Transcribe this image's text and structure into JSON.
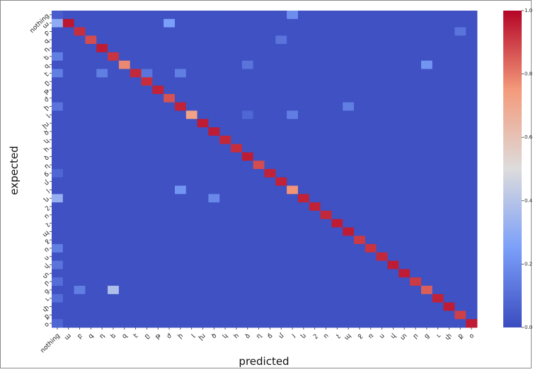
{
  "chart_data": {
    "type": "heatmap",
    "title": "",
    "xlabel": "predicted",
    "ylabel": "expected",
    "labels": [
      "nothing",
      "ա",
      "բ",
      "գ",
      "դ",
      "ե",
      "զ",
      "է",
      "ը",
      "թ",
      "ժ",
      "ի",
      "լ",
      "խ",
      "ծ",
      "կ",
      "հ",
      "ձ",
      "ղ",
      "ճ",
      "մ",
      "յ",
      "ն",
      "շ",
      "ո",
      "չ",
      "պ",
      "ջ",
      "ռ",
      "ս",
      "վ",
      "տ",
      "ր",
      "ց",
      "ւ",
      "փ",
      "ք",
      "օ"
    ],
    "colorbar": {
      "min": 0.0,
      "max": 1.0,
      "ticks": [
        "0.0",
        "0.2",
        "0.4",
        "0.6",
        "0.8",
        "1.0"
      ]
    },
    "diagonal": [
      0.05,
      0.97,
      0.93,
      0.88,
      0.96,
      0.92,
      0.78,
      0.94,
      0.93,
      0.95,
      0.87,
      0.95,
      0.72,
      0.96,
      0.96,
      0.94,
      0.93,
      0.96,
      0.88,
      0.95,
      0.95,
      0.76,
      0.95,
      0.95,
      0.94,
      0.96,
      0.96,
      0.91,
      0.92,
      0.94,
      0.96,
      0.96,
      0.91,
      0.85,
      0.95,
      0.96,
      0.9,
      0.96
    ],
    "off_diagonal": [
      {
        "row": 0,
        "col": 21,
        "value": 0.2
      },
      {
        "row": 1,
        "col": 0,
        "value": 0.3
      },
      {
        "row": 1,
        "col": 10,
        "value": 0.25
      },
      {
        "row": 2,
        "col": 36,
        "value": 0.12
      },
      {
        "row": 3,
        "col": 20,
        "value": 0.12
      },
      {
        "row": 5,
        "col": 0,
        "value": 0.15
      },
      {
        "row": 6,
        "col": 33,
        "value": 0.22
      },
      {
        "row": 6,
        "col": 17,
        "value": 0.12
      },
      {
        "row": 7,
        "col": 0,
        "value": 0.15
      },
      {
        "row": 7,
        "col": 4,
        "value": 0.15
      },
      {
        "row": 7,
        "col": 8,
        "value": 0.12
      },
      {
        "row": 7,
        "col": 11,
        "value": 0.15
      },
      {
        "row": 11,
        "col": 0,
        "value": 0.12
      },
      {
        "row": 11,
        "col": 26,
        "value": 0.15
      },
      {
        "row": 12,
        "col": 21,
        "value": 0.15
      },
      {
        "row": 12,
        "col": 17,
        "value": 0.08
      },
      {
        "row": 19,
        "col": 0,
        "value": 0.08
      },
      {
        "row": 21,
        "col": 11,
        "value": 0.22
      },
      {
        "row": 22,
        "col": 0,
        "value": 0.32
      },
      {
        "row": 22,
        "col": 14,
        "value": 0.18
      },
      {
        "row": 28,
        "col": 0,
        "value": 0.15
      },
      {
        "row": 30,
        "col": 0,
        "value": 0.12
      },
      {
        "row": 32,
        "col": 0,
        "value": 0.1
      },
      {
        "row": 33,
        "col": 2,
        "value": 0.15
      },
      {
        "row": 33,
        "col": 5,
        "value": 0.38
      },
      {
        "row": 34,
        "col": 0,
        "value": 0.1
      },
      {
        "row": 37,
        "col": 0,
        "value": 0.08
      }
    ]
  }
}
